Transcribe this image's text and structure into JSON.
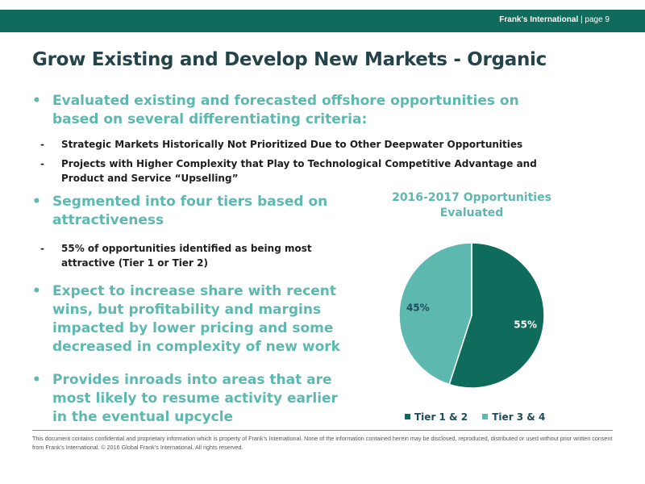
{
  "header": {
    "company": "Frank's International",
    "separator": "|",
    "page": "page 9"
  },
  "title": "Grow Existing and Develop New Markets - Organic",
  "bullets": [
    {
      "marker": "•",
      "text": "Evaluated existing and forecasted offshore opportunities on based on several differentiating criteria:"
    },
    {
      "marker": "•",
      "text": "Segmented into four tiers based on attractiveness"
    },
    {
      "marker": "•",
      "text": "Expect to increase share with recent wins, but profitability and margins impacted by lower pricing and some decreased in complexity of new work"
    },
    {
      "marker": "•",
      "text": "Provides inroads into areas that are most likely to resume activity earlier in the eventual upcycle"
    }
  ],
  "subbullets": [
    {
      "marker": "-",
      "text": "Strategic Markets Historically Not Prioritized Due to Other Deepwater Opportunities"
    },
    {
      "marker": "-",
      "text": "Projects with Higher Complexity that Play to Technological Competitive Advantage and Product and Service “Upselling”"
    },
    {
      "marker": "-",
      "text": "55% of opportunities identified as being most attractive (Tier 1 or Tier 2)"
    }
  ],
  "chart_data": {
    "type": "pie",
    "title": "2016-2017 Opportunities Evaluated",
    "categories": [
      "Tier 1 & 2",
      "Tier 3 & 4"
    ],
    "values": [
      55,
      45
    ],
    "labels": [
      "55%",
      "45%"
    ],
    "colors": [
      "#0f6b5c",
      "#5db8b0"
    ],
    "legend_position": "bottom"
  },
  "footer": "This document contains confidential and proprietary information which is property of Frank’s International. None of the information contained herein may be disclosed, reproduced, distributed or used without prior written consent from Frank’s International. © 2016 Global Frank’s International. All rights reserved."
}
